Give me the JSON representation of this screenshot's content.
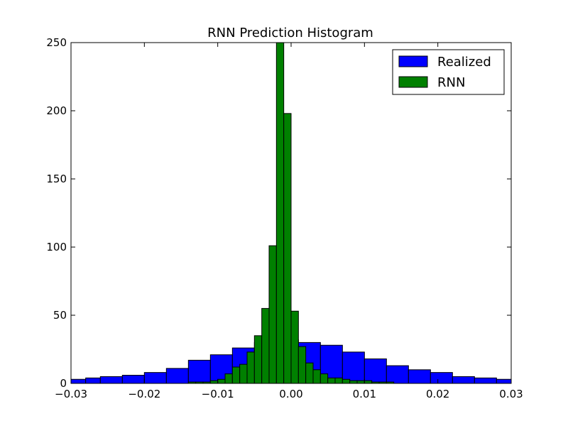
{
  "chart_data": {
    "type": "bar",
    "title": "RNN Prediction Histogram",
    "xlabel": "",
    "ylabel": "",
    "xlim": [
      -0.03,
      0.03
    ],
    "ylim": [
      0,
      250
    ],
    "x_ticks": [
      -0.03,
      -0.02,
      -0.01,
      0.0,
      0.01,
      0.02,
      0.03
    ],
    "x_tick_labels": [
      "−0.03",
      "−0.02",
      "−0.01",
      "0.00",
      "0.01",
      "0.02",
      "0.03"
    ],
    "y_ticks": [
      0,
      50,
      100,
      150,
      200,
      250
    ],
    "y_tick_labels": [
      "0",
      "50",
      "100",
      "150",
      "200",
      "250"
    ],
    "grid": false,
    "legend_position": "top-right",
    "series": [
      {
        "name": "Realized",
        "color": "#0000ff",
        "bins": [
          {
            "x0": -0.031,
            "x1": -0.028,
            "count": 3
          },
          {
            "x0": -0.028,
            "x1": -0.026,
            "count": 4
          },
          {
            "x0": -0.026,
            "x1": -0.023,
            "count": 5
          },
          {
            "x0": -0.023,
            "x1": -0.02,
            "count": 6
          },
          {
            "x0": -0.02,
            "x1": -0.017,
            "count": 8
          },
          {
            "x0": -0.017,
            "x1": -0.014,
            "count": 11
          },
          {
            "x0": -0.014,
            "x1": -0.011,
            "count": 17
          },
          {
            "x0": -0.011,
            "x1": -0.008,
            "count": 21
          },
          {
            "x0": -0.008,
            "x1": -0.005,
            "count": 26
          },
          {
            "x0": -0.005,
            "x1": -0.002,
            "count": 30
          },
          {
            "x0": -0.002,
            "x1": 0.001,
            "count": 32
          },
          {
            "x0": 0.001,
            "x1": 0.004,
            "count": 30
          },
          {
            "x0": 0.004,
            "x1": 0.007,
            "count": 28
          },
          {
            "x0": 0.007,
            "x1": 0.01,
            "count": 23
          },
          {
            "x0": 0.01,
            "x1": 0.013,
            "count": 18
          },
          {
            "x0": 0.013,
            "x1": 0.016,
            "count": 13
          },
          {
            "x0": 0.016,
            "x1": 0.019,
            "count": 10
          },
          {
            "x0": 0.019,
            "x1": 0.022,
            "count": 8
          },
          {
            "x0": 0.022,
            "x1": 0.025,
            "count": 5
          },
          {
            "x0": 0.025,
            "x1": 0.028,
            "count": 4
          },
          {
            "x0": 0.028,
            "x1": 0.031,
            "count": 3
          }
        ]
      },
      {
        "name": "RNN",
        "color": "#008000",
        "bins": [
          {
            "x0": -0.016,
            "x1": -0.015,
            "count": 0
          },
          {
            "x0": -0.015,
            "x1": -0.014,
            "count": 0
          },
          {
            "x0": -0.014,
            "x1": -0.013,
            "count": 1
          },
          {
            "x0": -0.013,
            "x1": -0.012,
            "count": 1
          },
          {
            "x0": -0.012,
            "x1": -0.011,
            "count": 1
          },
          {
            "x0": -0.011,
            "x1": -0.01,
            "count": 2
          },
          {
            "x0": -0.01,
            "x1": -0.009,
            "count": 3
          },
          {
            "x0": -0.009,
            "x1": -0.008,
            "count": 7
          },
          {
            "x0": -0.008,
            "x1": -0.007,
            "count": 12
          },
          {
            "x0": -0.007,
            "x1": -0.006,
            "count": 14
          },
          {
            "x0": -0.006,
            "x1": -0.005,
            "count": 23
          },
          {
            "x0": -0.005,
            "x1": -0.004,
            "count": 35
          },
          {
            "x0": -0.004,
            "x1": -0.003,
            "count": 55
          },
          {
            "x0": -0.003,
            "x1": -0.002,
            "count": 101
          },
          {
            "x0": -0.002,
            "x1": -0.001,
            "count": 250
          },
          {
            "x0": -0.001,
            "x1": 0.0,
            "count": 198
          },
          {
            "x0": 0.0,
            "x1": 0.001,
            "count": 53
          },
          {
            "x0": 0.001,
            "x1": 0.002,
            "count": 27
          },
          {
            "x0": 0.002,
            "x1": 0.003,
            "count": 15
          },
          {
            "x0": 0.003,
            "x1": 0.004,
            "count": 10
          },
          {
            "x0": 0.004,
            "x1": 0.005,
            "count": 7
          },
          {
            "x0": 0.005,
            "x1": 0.006,
            "count": 4
          },
          {
            "x0": 0.006,
            "x1": 0.007,
            "count": 4
          },
          {
            "x0": 0.007,
            "x1": 0.008,
            "count": 3
          },
          {
            "x0": 0.008,
            "x1": 0.009,
            "count": 2
          },
          {
            "x0": 0.009,
            "x1": 0.01,
            "count": 2
          },
          {
            "x0": 0.01,
            "x1": 0.011,
            "count": 2
          },
          {
            "x0": 0.011,
            "x1": 0.012,
            "count": 1
          },
          {
            "x0": 0.012,
            "x1": 0.013,
            "count": 1
          },
          {
            "x0": 0.013,
            "x1": 0.014,
            "count": 1
          },
          {
            "x0": 0.014,
            "x1": 0.015,
            "count": 0
          }
        ]
      }
    ]
  }
}
